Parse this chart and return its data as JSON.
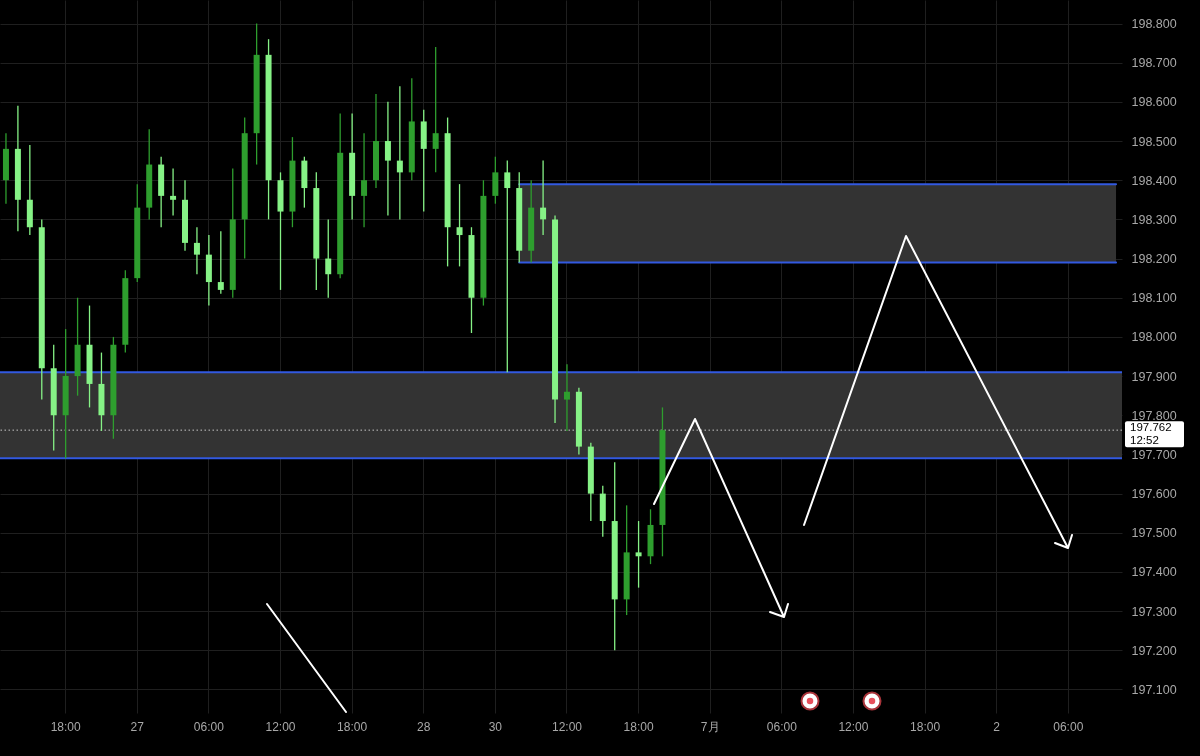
{
  "chart_data": {
    "type": "candlestick",
    "categories": [
      null,
      null,
      null,
      null,
      null,
      "18:00",
      null,
      null,
      null,
      null,
      null,
      "27",
      null,
      null,
      null,
      null,
      null,
      "06:00",
      null,
      null,
      null,
      null,
      null,
      "12:00",
      null,
      null,
      null,
      null,
      null,
      "18:00",
      null,
      null,
      null,
      null,
      null,
      "28",
      null,
      null,
      null,
      null,
      null,
      "30",
      null,
      null,
      null,
      null,
      null,
      "12:00",
      null,
      null,
      null,
      null,
      null,
      "18:00",
      null,
      null,
      null,
      null,
      null,
      "7月",
      null,
      null,
      null,
      null,
      null,
      "06:00",
      null,
      null,
      null,
      null,
      null,
      "12:00",
      null,
      null,
      null,
      null,
      null,
      "18:00",
      null,
      null,
      null,
      null,
      null,
      "2",
      null,
      null,
      null,
      null,
      null,
      "06:00",
      null,
      null,
      null,
      null
    ],
    "ylim": [
      197.04,
      198.86
    ],
    "yticks": [
      {
        "value": 197.1,
        "label": "197.100"
      },
      {
        "value": 197.2,
        "label": "197.200"
      },
      {
        "value": 197.3,
        "label": "197.300"
      },
      {
        "value": 197.4,
        "label": "197.400"
      },
      {
        "value": 197.5,
        "label": "197.500"
      },
      {
        "value": 197.6,
        "label": "197.600"
      },
      {
        "value": 197.7,
        "label": "197.700"
      },
      {
        "value": 197.8,
        "label": "197.800"
      },
      {
        "value": 197.9,
        "label": "197.900"
      },
      {
        "value": 198.0,
        "label": "198.000"
      },
      {
        "value": 198.1,
        "label": "198.100"
      },
      {
        "value": 198.2,
        "label": "198.200"
      },
      {
        "value": 198.3,
        "label": "198.300"
      },
      {
        "value": 198.4,
        "label": "198.400"
      },
      {
        "value": 198.5,
        "label": "198.500"
      },
      {
        "value": 198.6,
        "label": "198.600"
      },
      {
        "value": 198.7,
        "label": "198.700"
      },
      {
        "value": 198.8,
        "label": "198.800"
      }
    ],
    "grid": true,
    "ohlc": [
      [
        198.4,
        198.52,
        198.34,
        198.48
      ],
      [
        198.48,
        198.59,
        198.27,
        198.35
      ],
      [
        198.35,
        198.49,
        198.26,
        198.28
      ],
      [
        198.28,
        198.3,
        197.84,
        197.92
      ],
      [
        197.92,
        197.98,
        197.71,
        197.8
      ],
      [
        197.8,
        198.02,
        197.69,
        197.9
      ],
      [
        197.9,
        198.1,
        197.85,
        197.98
      ],
      [
        197.98,
        198.08,
        197.82,
        197.88
      ],
      [
        197.88,
        197.96,
        197.76,
        197.8
      ],
      [
        197.8,
        198.0,
        197.74,
        197.98
      ],
      [
        197.98,
        198.17,
        197.96,
        198.15
      ],
      [
        198.15,
        198.39,
        198.14,
        198.33
      ],
      [
        198.33,
        198.53,
        198.3,
        198.44
      ],
      [
        198.44,
        198.46,
        198.28,
        198.36
      ],
      [
        198.36,
        198.43,
        198.31,
        198.35
      ],
      [
        198.35,
        198.4,
        198.22,
        198.24
      ],
      [
        198.24,
        198.28,
        198.16,
        198.21
      ],
      [
        198.21,
        198.26,
        198.08,
        198.14
      ],
      [
        198.14,
        198.27,
        198.11,
        198.12
      ],
      [
        198.12,
        198.43,
        198.1,
        198.3
      ],
      [
        198.3,
        198.56,
        198.2,
        198.52
      ],
      [
        198.52,
        198.8,
        198.44,
        198.72
      ],
      [
        198.72,
        198.76,
        198.3,
        198.4
      ],
      [
        198.4,
        198.42,
        198.12,
        198.32
      ],
      [
        198.32,
        198.51,
        198.28,
        198.45
      ],
      [
        198.45,
        198.46,
        198.33,
        198.38
      ],
      [
        198.38,
        198.42,
        198.12,
        198.2
      ],
      [
        198.2,
        198.3,
        198.1,
        198.16
      ],
      [
        198.16,
        198.57,
        198.15,
        198.47
      ],
      [
        198.47,
        198.57,
        198.3,
        198.36
      ],
      [
        198.36,
        198.52,
        198.28,
        198.4
      ],
      [
        198.4,
        198.62,
        198.38,
        198.5
      ],
      [
        198.5,
        198.6,
        198.31,
        198.45
      ],
      [
        198.45,
        198.64,
        198.3,
        198.42
      ],
      [
        198.42,
        198.66,
        198.4,
        198.55
      ],
      [
        198.55,
        198.58,
        198.32,
        198.48
      ],
      [
        198.48,
        198.74,
        198.42,
        198.52
      ],
      [
        198.52,
        198.56,
        198.18,
        198.28
      ],
      [
        198.28,
        198.39,
        198.18,
        198.26
      ],
      [
        198.26,
        198.28,
        198.01,
        198.1
      ],
      [
        198.1,
        198.4,
        198.08,
        198.36
      ],
      [
        198.36,
        198.46,
        198.34,
        198.42
      ],
      [
        198.42,
        198.45,
        197.91,
        198.38
      ],
      [
        198.38,
        198.42,
        198.19,
        198.22
      ],
      [
        198.22,
        198.4,
        198.19,
        198.33
      ],
      [
        198.33,
        198.45,
        198.26,
        198.3
      ],
      [
        198.3,
        198.31,
        197.78,
        197.84
      ],
      [
        197.84,
        197.93,
        197.76,
        197.86
      ],
      [
        197.86,
        197.87,
        197.7,
        197.72
      ],
      [
        197.72,
        197.73,
        197.53,
        197.6
      ],
      [
        197.6,
        197.62,
        197.49,
        197.53
      ],
      [
        197.53,
        197.68,
        197.2,
        197.33
      ],
      [
        197.33,
        197.57,
        197.29,
        197.45
      ],
      [
        197.45,
        197.53,
        197.36,
        197.44
      ],
      [
        197.44,
        197.56,
        197.42,
        197.52
      ],
      [
        197.52,
        197.82,
        197.44,
        197.762
      ],
      null,
      null,
      null,
      null,
      null,
      null,
      null,
      null,
      null,
      null,
      null,
      null,
      null,
      null,
      null,
      null,
      null,
      null,
      null,
      null,
      null,
      null,
      null,
      null,
      null,
      null,
      null,
      null,
      null,
      null,
      null,
      null,
      null,
      null,
      null,
      null,
      null,
      null
    ],
    "colors": [
      "#2e9e2e",
      "#86f286",
      "#86f286",
      "#86f286",
      "#86f286",
      "#2e9e2e",
      "#2e9e2e",
      "#86f286",
      "#86f286",
      "#2e9e2e",
      "#2e9e2e",
      "#2e9e2e",
      "#2e9e2e",
      "#86f286",
      "#86f286",
      "#86f286",
      "#86f286",
      "#86f286",
      "#86f286",
      "#2e9e2e",
      "#2e9e2e",
      "#2e9e2e",
      "#86f286",
      "#86f286",
      "#2e9e2e",
      "#86f286",
      "#86f286",
      "#86f286",
      "#2e9e2e",
      "#86f286",
      "#2e9e2e",
      "#2e9e2e",
      "#86f286",
      "#86f286",
      "#2e9e2e",
      "#86f286",
      "#2e9e2e",
      "#86f286",
      "#86f286",
      "#86f286",
      "#2e9e2e",
      "#2e9e2e",
      "#86f286",
      "#86f286",
      "#2e9e2e",
      "#86f286",
      "#86f286",
      "#2e9e2e",
      "#86f286",
      "#86f286",
      "#86f286",
      "#86f286",
      "#2e9e2e",
      "#86f286",
      "#2e9e2e",
      "#2e9e2e",
      null,
      null,
      null,
      null,
      null,
      null,
      null,
      null,
      null,
      null,
      null,
      null,
      null,
      null,
      null,
      null,
      null,
      null,
      null,
      null,
      null,
      null,
      null,
      null,
      null,
      null,
      null,
      null,
      null,
      null,
      null,
      null,
      null,
      null,
      null,
      null,
      null,
      null
    ],
    "bands": [
      {
        "axis": "y",
        "from": 197.69,
        "to": 197.91,
        "color": "#333333"
      }
    ],
    "ref_lines": [
      {
        "axis": "y",
        "value": 197.91,
        "color": "#3259e0"
      },
      {
        "axis": "y",
        "value": 197.69,
        "color": "#3259e0"
      },
      {
        "axis": "y",
        "value": 197.762,
        "label": "197.762\n12:52",
        "color": "#c8c8c8",
        "line_style": "dotted"
      }
    ],
    "series": [
      {
        "type": "line",
        "color": "#3259e0",
        "values": [
          null,
          null,
          null,
          null,
          null,
          null,
          null,
          null,
          null,
          null,
          null,
          null,
          null,
          null,
          null,
          null,
          null,
          null,
          null,
          null,
          null,
          null,
          null,
          null,
          null,
          null,
          null,
          null,
          null,
          null,
          null,
          null,
          null,
          null,
          null,
          null,
          null,
          null,
          null,
          null,
          null,
          null,
          null,
          198.39,
          198.39,
          198.39,
          198.39,
          198.39,
          198.39,
          198.39,
          198.39,
          198.39,
          198.39,
          198.39,
          198.39,
          198.39,
          198.39,
          198.39,
          198.39,
          198.39,
          198.39,
          198.39,
          198.39,
          198.39,
          198.39,
          198.39,
          198.39,
          198.39,
          198.39,
          198.39,
          198.39,
          198.39,
          198.39,
          198.39,
          198.39,
          198.39,
          198.39,
          198.39,
          198.39,
          198.39,
          198.39,
          198.39,
          198.39,
          198.39,
          198.39,
          198.39,
          198.39,
          198.39,
          198.39,
          198.39,
          198.39,
          198.39,
          198.39,
          198.39
        ],
        "lower": [
          null,
          null,
          null,
          null,
          null,
          null,
          null,
          null,
          null,
          null,
          null,
          null,
          null,
          null,
          null,
          null,
          null,
          null,
          null,
          null,
          null,
          null,
          null,
          null,
          null,
          null,
          null,
          null,
          null,
          null,
          null,
          null,
          null,
          null,
          null,
          null,
          null,
          null,
          null,
          null,
          null,
          null,
          null,
          198.19,
          198.19,
          198.19,
          198.19,
          198.19,
          198.19,
          198.19,
          198.19,
          198.19,
          198.19,
          198.19,
          198.19,
          198.19,
          198.19,
          198.19,
          198.19,
          198.19,
          198.19,
          198.19,
          198.19,
          198.19,
          198.19,
          198.19,
          198.19,
          198.19,
          198.19,
          198.19,
          198.19,
          198.19,
          198.19,
          198.19,
          198.19,
          198.19,
          198.19,
          198.19,
          198.19,
          198.19,
          198.19,
          198.19,
          198.19,
          198.19,
          198.19,
          198.19,
          198.19,
          198.19,
          198.19,
          198.19,
          198.19,
          198.19,
          198.19,
          198.19
        ],
        "upper": [
          null,
          null,
          null,
          null,
          null,
          null,
          null,
          null,
          null,
          null,
          null,
          null,
          null,
          null,
          null,
          null,
          null,
          null,
          null,
          null,
          null,
          null,
          null,
          null,
          null,
          null,
          null,
          null,
          null,
          null,
          null,
          null,
          null,
          null,
          null,
          null,
          null,
          null,
          null,
          null,
          null,
          null,
          null,
          198.39,
          198.39,
          198.39,
          198.39,
          198.39,
          198.39,
          198.39,
          198.39,
          198.39,
          198.39,
          198.39,
          198.39,
          198.39,
          198.39,
          198.39,
          198.39,
          198.39,
          198.39,
          198.39,
          198.39,
          198.39,
          198.39,
          198.39,
          198.39,
          198.39,
          198.39,
          198.39,
          198.39,
          198.39,
          198.39,
          198.39,
          198.39,
          198.39,
          198.39,
          198.39,
          198.39,
          198.39,
          198.39,
          198.39,
          198.39,
          198.39,
          198.39,
          198.39,
          198.39,
          198.39,
          198.39,
          198.39,
          198.39,
          198.39,
          198.39,
          198.39
        ]
      },
      {
        "type": "line",
        "color": "#3259e0",
        "values": [
          null,
          null,
          null,
          null,
          null,
          null,
          null,
          null,
          null,
          null,
          null,
          null,
          null,
          null,
          null,
          null,
          null,
          null,
          null,
          null,
          null,
          null,
          null,
          null,
          null,
          null,
          null,
          null,
          null,
          null,
          null,
          null,
          null,
          null,
          null,
          null,
          null,
          null,
          null,
          null,
          null,
          null,
          null,
          198.19,
          198.19,
          198.19,
          198.19,
          198.19,
          198.19,
          198.19,
          198.19,
          198.19,
          198.19,
          198.19,
          198.19,
          198.19,
          198.19,
          198.19,
          198.19,
          198.19,
          198.19,
          198.19,
          198.19,
          198.19,
          198.19,
          198.19,
          198.19,
          198.19,
          198.19,
          198.19,
          198.19,
          198.19,
          198.19,
          198.19,
          198.19,
          198.19,
          198.19,
          198.19,
          198.19,
          198.19,
          198.19,
          198.19,
          198.19,
          198.19,
          198.19,
          198.19,
          198.19,
          198.19,
          198.19,
          198.19,
          198.19,
          198.19,
          198.19,
          198.19
        ]
      }
    ]
  }
}
